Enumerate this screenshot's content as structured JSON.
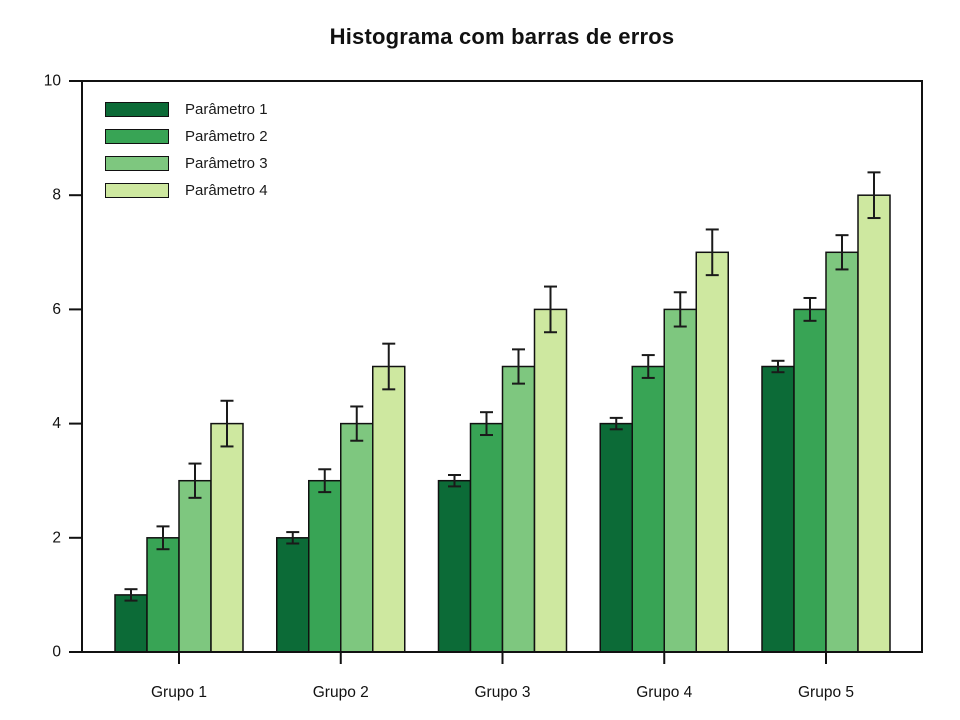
{
  "chart_data": {
    "type": "bar",
    "title": "Histograma com barras de erros",
    "categories": [
      "Grupo 1",
      "Grupo 2",
      "Grupo 3",
      "Grupo 4",
      "Grupo 5"
    ],
    "series": [
      {
        "name": "Parâmetro 1",
        "color": "#0c6b37",
        "values": [
          1,
          2,
          3,
          4,
          5
        ],
        "errors": [
          0.1,
          0.1,
          0.1,
          0.1,
          0.1
        ]
      },
      {
        "name": "Parâmetro 2",
        "color": "#38a455",
        "values": [
          2,
          3,
          4,
          5,
          6
        ],
        "errors": [
          0.2,
          0.2,
          0.2,
          0.2,
          0.2
        ]
      },
      {
        "name": "Parâmetro 3",
        "color": "#7ec77f",
        "values": [
          3,
          4,
          5,
          6,
          7
        ],
        "errors": [
          0.3,
          0.3,
          0.3,
          0.3,
          0.3
        ]
      },
      {
        "name": "Parâmetro 4",
        "color": "#cee8a0",
        "values": [
          4,
          5,
          6,
          7,
          8
        ],
        "errors": [
          0.4,
          0.4,
          0.4,
          0.4,
          0.4
        ]
      }
    ],
    "xlabel": "",
    "ylabel": "",
    "ylim": [
      0,
      10
    ],
    "yticks": [
      "0",
      "2",
      "4",
      "6",
      "8",
      "10"
    ],
    "grid": false,
    "legend_position": "top-left",
    "bar_outline_color": "#111111",
    "errorbar_color": "#1a1a1a",
    "axis_color": "#111111",
    "tick_label_color": "#111111",
    "background_color": "#ffffff"
  }
}
